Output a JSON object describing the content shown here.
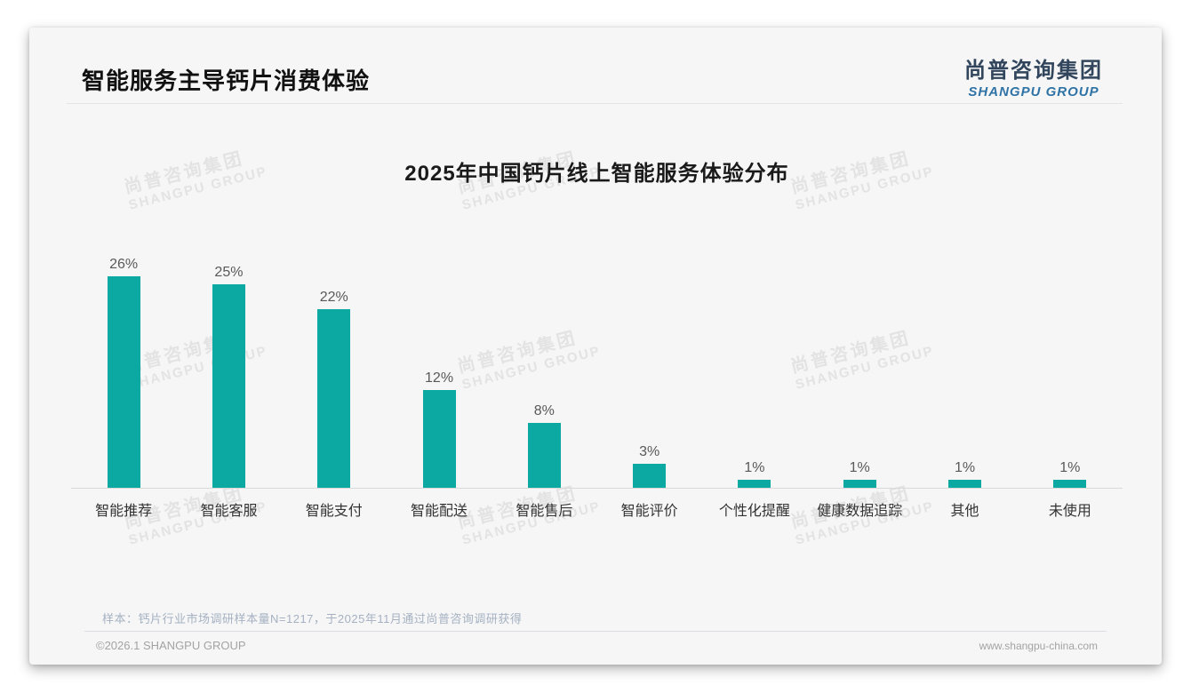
{
  "header": {
    "title": "智能服务主导钙片消费体验"
  },
  "logo": {
    "cn": "尚普咨询集团",
    "en": "SHANGPU GROUP"
  },
  "watermark": {
    "cn": "尚普咨询集团",
    "en": "SHANGPU GROUP"
  },
  "chart_data": {
    "type": "bar",
    "title": "2025年中国钙片线上智能服务体验分布",
    "categories": [
      "智能推荐",
      "智能客服",
      "智能支付",
      "智能配送",
      "智能售后",
      "智能评价",
      "个性化提醒",
      "健康数据追踪",
      "其他",
      "未使用"
    ],
    "values": [
      26,
      25,
      22,
      12,
      8,
      3,
      1,
      1,
      1,
      1
    ],
    "value_labels": [
      "26%",
      "25%",
      "22%",
      "12%",
      "8%",
      "3%",
      "1%",
      "1%",
      "1%",
      "1%"
    ],
    "unit": "%",
    "ylim": [
      0,
      30
    ],
    "grid": false,
    "legend": null,
    "bar_color": "#0ca9a2",
    "value_label_color": "#595959",
    "category_label_color": "#333333"
  },
  "footer": {
    "note": "样本：钙片行业市场调研样本量N=1217，于2025年11月通过尚普咨询调研获得",
    "copyright": "©2026.1 SHANGPU GROUP",
    "website": "www.shangpu-china.com"
  },
  "colors": {
    "accent_teal": "#0ca9a2",
    "logo_cn": "#31455c",
    "logo_en": "#2f73a6",
    "watermark": "#e3e3e3"
  }
}
